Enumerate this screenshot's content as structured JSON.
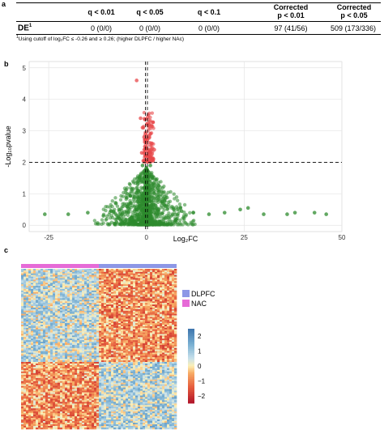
{
  "panel_labels": {
    "a": "a",
    "b": "b",
    "c": "c"
  },
  "table": {
    "headers": [
      "q < 0.01",
      "q < 0.05",
      "q < 0.1",
      "Corrected p < 0.01",
      "Corrected p < 0.05"
    ],
    "row_label": "DE",
    "row_label_sup": "1",
    "values": [
      "0 (0/0)",
      "0 (0/0)",
      "0 (0/0)",
      "97 (41/56)",
      "509 (173/336)"
    ],
    "footnote": "Using cutoff of log₂FC ≤ -0.26 and ≥ 0.26; (higher DLPFC / higher NAc)",
    "footnote_sup": "1"
  },
  "chart_data": [
    {
      "type": "scatter",
      "subtype": "volcano",
      "xlabel": "Log₂FC",
      "ylabel": "-Log₁₀pvalue",
      "xlim": [
        -30,
        50
      ],
      "ylim": [
        -0.2,
        5.2
      ],
      "xticks": [
        -25,
        0,
        25,
        50
      ],
      "yticks": [
        0,
        1,
        2,
        3,
        4,
        5
      ],
      "grid": true,
      "reference_lines": {
        "vertical": [
          -0.26,
          0.26
        ],
        "horizontal": [
          2
        ]
      },
      "colors": {
        "significant": "#e8474a",
        "not_significant": "#2e8b2e"
      },
      "points": [
        {
          "x": -26,
          "y": 0.35
        },
        {
          "x": -20,
          "y": 0.35
        },
        {
          "x": -15,
          "y": 0.4
        },
        {
          "x": -11,
          "y": 0.3
        },
        {
          "x": -9,
          "y": 0.45
        },
        {
          "x": -7,
          "y": 0.5
        },
        {
          "x": -5,
          "y": 0.6
        },
        {
          "x": -4,
          "y": 0.7
        },
        {
          "x": -3,
          "y": 0.9
        },
        {
          "x": -2,
          "y": 1.1
        },
        {
          "x": -1.5,
          "y": 1.6
        },
        {
          "x": -1,
          "y": 1.9
        },
        {
          "x": 1,
          "y": 1.9
        },
        {
          "x": 1.5,
          "y": 1.5
        },
        {
          "x": 2,
          "y": 1.1
        },
        {
          "x": 3,
          "y": 0.9
        },
        {
          "x": 4,
          "y": 0.75
        },
        {
          "x": 5,
          "y": 0.6
        },
        {
          "x": 7,
          "y": 0.5
        },
        {
          "x": 9,
          "y": 0.45
        },
        {
          "x": 12,
          "y": 0.4
        },
        {
          "x": 16,
          "y": 0.35
        },
        {
          "x": 20,
          "y": 0.4
        },
        {
          "x": 24,
          "y": 0.5
        },
        {
          "x": 26,
          "y": 0.55
        },
        {
          "x": 30,
          "y": 0.35
        },
        {
          "x": 36,
          "y": 0.35
        },
        {
          "x": 38,
          "y": 0.4
        },
        {
          "x": 43,
          "y": 0.4
        },
        {
          "x": 46,
          "y": 0.35
        },
        {
          "x": -2.5,
          "y": 4.6
        },
        {
          "x": -1.5,
          "y": 3.4
        },
        {
          "x": -1,
          "y": 3.1
        },
        {
          "x": -0.6,
          "y": 2.8
        },
        {
          "x": -0.4,
          "y": 2.5
        },
        {
          "x": -1.2,
          "y": 2.3
        },
        {
          "x": 0.5,
          "y": 3.5
        },
        {
          "x": 0.8,
          "y": 3.2
        },
        {
          "x": 1,
          "y": 2.9
        },
        {
          "x": 1.4,
          "y": 2.6
        },
        {
          "x": 2,
          "y": 2.4
        },
        {
          "x": 0.6,
          "y": 2.2
        },
        {
          "x": 1.8,
          "y": 2.1
        },
        {
          "x": -0.8,
          "y": 2.05
        }
      ]
    },
    {
      "type": "heatmap",
      "annotation_legend": [
        {
          "name": "DLPFC",
          "color": "#8d97e6"
        },
        {
          "name": "NAC",
          "color": "#e66bd7"
        }
      ],
      "colorbar": {
        "ticks": [
          2,
          1,
          0,
          -1,
          -2
        ],
        "range": [
          -2.5,
          2.5
        ]
      },
      "blocks": [
        {
          "rows": "top",
          "group": "NAC",
          "mean": 0.6
        },
        {
          "rows": "top",
          "group": "DLPFC",
          "mean": -0.8
        },
        {
          "rows": "bottom",
          "group": "NAC",
          "mean": -0.8
        },
        {
          "rows": "bottom",
          "group": "DLPFC",
          "mean": 0.7
        }
      ]
    }
  ]
}
